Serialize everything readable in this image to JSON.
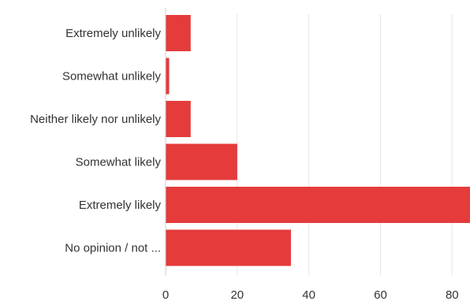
{
  "chart_data": {
    "type": "bar",
    "orientation": "horizontal",
    "categories": [
      "Extremely unlikely",
      "Somewhat unlikely",
      "Neither likely nor unlikely",
      "Somewhat likely",
      "Extremely likely",
      "No opinion / not ..."
    ],
    "values": [
      7,
      1,
      7,
      20,
      85,
      35
    ],
    "xlim": [
      0,
      85
    ],
    "xticks": [
      0,
      20,
      40,
      60,
      80
    ],
    "grid": true,
    "legend": "none",
    "bar_color": "#e53b3b"
  }
}
